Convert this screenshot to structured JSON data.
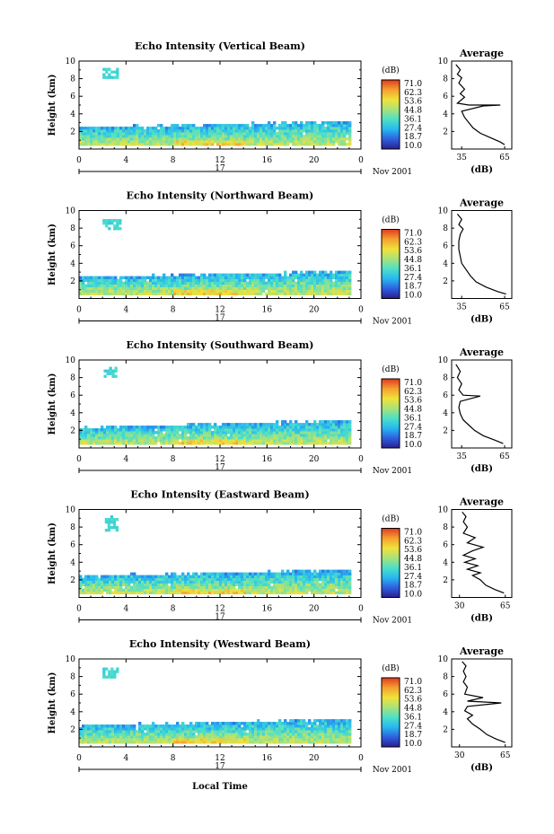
{
  "colorbar": {
    "unit": "(dB)",
    "labels": [
      "71.0",
      "62.3",
      "53.6",
      "44.8",
      "36.1",
      "27.4",
      "18.7",
      "10.0"
    ],
    "stops": [
      "#2a1f8f",
      "#2f5fe0",
      "#27b8f0",
      "#4de0c8",
      "#a9e27a",
      "#f0e23a",
      "#f5a030",
      "#e03a20"
    ]
  },
  "shared": {
    "ylabel": "Height (km)",
    "date_label": "Nov 2001",
    "day_label": "17",
    "xlabel": "Local Time",
    "average_title": "Average",
    "average_xlabel": "(dB)"
  },
  "chart_data": [
    {
      "type": "heatmap",
      "title": "Echo Intensity (Vertical Beam)",
      "ylabel": "Height (km)",
      "x_ticks": [
        "0",
        "4",
        "8",
        "12",
        "16",
        "20",
        "0"
      ],
      "y_ticks": [
        "2",
        "4",
        "6",
        "8",
        "10"
      ],
      "xlim": [
        0,
        24
      ],
      "ylim": [
        0,
        10
      ],
      "echo_layer": {
        "base_km": 0.4,
        "top_start_km": 2.3,
        "top_end_km": 3.0,
        "x_end_hr": 23.0
      },
      "isolated_echo": {
        "x_hr": [
          2.0,
          3.2
        ],
        "y_km": [
          8.0,
          9.0
        ]
      },
      "average": {
        "title": "Average",
        "xlabel": "(dB)",
        "x_ticks": [
          "35",
          "65"
        ],
        "xlim": [
          28,
          70
        ],
        "y_ticks": [
          "2",
          "4",
          "6",
          "8",
          "10"
        ],
        "profile": [
          [
            65,
            0.5
          ],
          [
            62,
            0.8
          ],
          [
            55,
            1.3
          ],
          [
            48,
            1.8
          ],
          [
            43,
            2.4
          ],
          [
            40,
            3.0
          ],
          [
            37,
            3.6
          ],
          [
            35,
            4.3
          ],
          [
            50,
            4.9
          ],
          [
            62,
            5.0
          ],
          [
            40,
            5.0
          ],
          [
            32,
            5.2
          ],
          [
            37,
            5.9
          ],
          [
            34,
            6.3
          ],
          [
            37,
            6.8
          ],
          [
            33,
            7.5
          ],
          [
            35,
            8.1
          ],
          [
            32,
            8.5
          ],
          [
            34,
            9.0
          ],
          [
            31,
            9.6
          ]
        ]
      }
    },
    {
      "type": "heatmap",
      "title": "Echo Intensity (Northward Beam)",
      "ylabel": "Height (km)",
      "x_ticks": [
        "0",
        "4",
        "8",
        "12",
        "16",
        "20",
        "0"
      ],
      "y_ticks": [
        "2",
        "4",
        "6",
        "8",
        "10"
      ],
      "xlim": [
        0,
        24
      ],
      "ylim": [
        0,
        10
      ],
      "echo_layer": {
        "base_km": 0.4,
        "top_start_km": 2.3,
        "top_end_km": 3.0,
        "x_end_hr": 23.0
      },
      "isolated_echo": {
        "x_hr": [
          2.0,
          3.4
        ],
        "y_km": [
          7.8,
          9.0
        ]
      },
      "average": {
        "title": "Average",
        "xlabel": "(dB)",
        "x_ticks": [
          "35",
          "65"
        ],
        "xlim": [
          28,
          70
        ],
        "y_ticks": [
          "2",
          "4",
          "6",
          "8",
          "10"
        ],
        "profile": [
          [
            66,
            0.5
          ],
          [
            60,
            0.8
          ],
          [
            52,
            1.3
          ],
          [
            45,
            1.9
          ],
          [
            41,
            2.6
          ],
          [
            38,
            3.3
          ],
          [
            35,
            4.0
          ],
          [
            34,
            4.8
          ],
          [
            33,
            5.6
          ],
          [
            33,
            6.5
          ],
          [
            34,
            7.3
          ],
          [
            36,
            7.9
          ],
          [
            33,
            8.4
          ],
          [
            35,
            9.0
          ],
          [
            32,
            9.6
          ]
        ]
      }
    },
    {
      "type": "heatmap",
      "title": "Echo Intensity (Southward Beam)",
      "ylabel": "Height (km)",
      "x_ticks": [
        "0",
        "4",
        "8",
        "12",
        "16",
        "20",
        "0"
      ],
      "y_ticks": [
        "2",
        "4",
        "6",
        "8",
        "10"
      ],
      "xlim": [
        0,
        24
      ],
      "ylim": [
        0,
        10
      ],
      "echo_layer": {
        "base_km": 0.4,
        "top_start_km": 2.2,
        "top_end_km": 3.0,
        "x_end_hr": 23.0
      },
      "isolated_echo": {
        "x_hr": [
          2.1,
          3.2
        ],
        "y_km": [
          8.0,
          9.0
        ]
      },
      "average": {
        "title": "Average",
        "xlabel": "(dB)",
        "x_ticks": [
          "35",
          "65"
        ],
        "xlim": [
          28,
          70
        ],
        "y_ticks": [
          "2",
          "4",
          "6",
          "8",
          "10"
        ],
        "profile": [
          [
            64,
            0.5
          ],
          [
            58,
            0.9
          ],
          [
            50,
            1.4
          ],
          [
            44,
            2.0
          ],
          [
            40,
            2.6
          ],
          [
            36,
            3.2
          ],
          [
            34,
            3.9
          ],
          [
            33,
            4.6
          ],
          [
            34,
            5.3
          ],
          [
            48,
            5.9
          ],
          [
            36,
            6.0
          ],
          [
            33,
            6.6
          ],
          [
            35,
            7.3
          ],
          [
            32,
            8.0
          ],
          [
            34,
            8.7
          ],
          [
            31,
            9.5
          ]
        ]
      }
    },
    {
      "type": "heatmap",
      "title": "Echo Intensity (Eastward Beam)",
      "ylabel": "Height (km)",
      "x_ticks": [
        "0",
        "4",
        "8",
        "12",
        "16",
        "20",
        "0"
      ],
      "y_ticks": [
        "2",
        "4",
        "6",
        "8",
        "10"
      ],
      "xlim": [
        0,
        24
      ],
      "ylim": [
        0,
        10
      ],
      "echo_layer": {
        "base_km": 0.4,
        "top_start_km": 2.3,
        "top_end_km": 3.0,
        "x_end_hr": 23.0
      },
      "isolated_echo": {
        "x_hr": [
          2.2,
          3.2
        ],
        "y_km": [
          7.5,
          9.2
        ]
      },
      "average": {
        "title": "Average",
        "xlabel": "(dB)",
        "x_ticks": [
          "30",
          "65"
        ],
        "xlim": [
          24,
          70
        ],
        "y_ticks": [
          "2",
          "4",
          "6",
          "8",
          "10"
        ],
        "profile": [
          [
            64,
            0.5
          ],
          [
            57,
            0.9
          ],
          [
            50,
            1.4
          ],
          [
            46,
            2.0
          ],
          [
            40,
            2.5
          ],
          [
            46,
            2.8
          ],
          [
            36,
            3.2
          ],
          [
            44,
            3.6
          ],
          [
            34,
            4.0
          ],
          [
            42,
            4.4
          ],
          [
            33,
            4.8
          ],
          [
            40,
            5.3
          ],
          [
            48,
            5.7
          ],
          [
            36,
            6.2
          ],
          [
            42,
            6.8
          ],
          [
            33,
            7.3
          ],
          [
            36,
            8.0
          ],
          [
            33,
            8.6
          ],
          [
            35,
            9.2
          ],
          [
            32,
            9.7
          ]
        ]
      }
    },
    {
      "type": "heatmap",
      "title": "Echo Intensity (Westward Beam)",
      "ylabel": "Height (km)",
      "x_ticks": [
        "0",
        "4",
        "8",
        "12",
        "16",
        "20",
        "0"
      ],
      "y_ticks": [
        "2",
        "4",
        "6",
        "8",
        "10"
      ],
      "xlim": [
        0,
        24
      ],
      "ylim": [
        0,
        10
      ],
      "echo_layer": {
        "base_km": 0.4,
        "top_start_km": 2.3,
        "top_end_km": 3.0,
        "x_end_hr": 23.0
      },
      "isolated_echo": {
        "x_hr": [
          2.0,
          3.2
        ],
        "y_km": [
          7.8,
          9.0
        ]
      },
      "average": {
        "title": "Average",
        "xlabel": "(dB)",
        "x_ticks": [
          "30",
          "65"
        ],
        "xlim": [
          24,
          70
        ],
        "y_ticks": [
          "2",
          "4",
          "6",
          "8",
          "10"
        ],
        "profile": [
          [
            65,
            0.5
          ],
          [
            58,
            0.9
          ],
          [
            51,
            1.4
          ],
          [
            46,
            2.0
          ],
          [
            40,
            2.6
          ],
          [
            36,
            3.2
          ],
          [
            40,
            3.6
          ],
          [
            34,
            4.1
          ],
          [
            36,
            4.6
          ],
          [
            62,
            5.0
          ],
          [
            36,
            5.2
          ],
          [
            48,
            5.6
          ],
          [
            34,
            6.0
          ],
          [
            36,
            6.8
          ],
          [
            33,
            7.4
          ],
          [
            35,
            8.0
          ],
          [
            33,
            8.6
          ],
          [
            35,
            9.2
          ],
          [
            32,
            9.7
          ]
        ]
      }
    }
  ]
}
